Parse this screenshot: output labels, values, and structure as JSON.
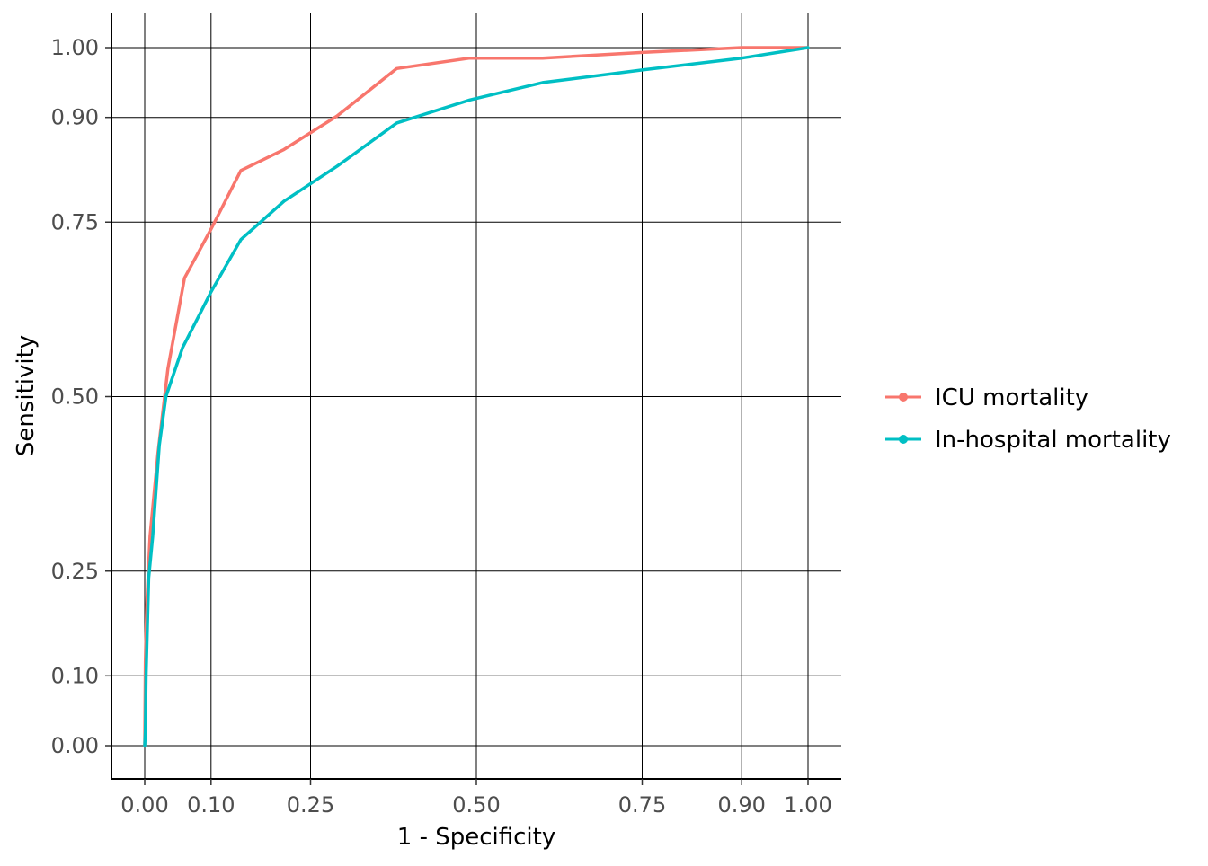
{
  "chart_data": {
    "type": "line",
    "xlabel": "1 - Specificity",
    "ylabel": "Sensitivity",
    "xlim": [
      -0.05,
      1.05
    ],
    "ylim": [
      -0.05,
      1.05
    ],
    "x_ticks": [
      "0.00",
      "0.10",
      "0.25",
      "0.50",
      "0.75",
      "0.90",
      "1.00"
    ],
    "y_ticks": [
      "0.00",
      "0.10",
      "0.25",
      "0.50",
      "0.75",
      "0.90",
      "1.00"
    ],
    "grid": true,
    "legend_position": "right",
    "series": [
      {
        "name": "ICU mortality",
        "color": "#F8766D",
        "x": [
          0.0,
          0.001,
          0.003,
          0.008,
          0.02,
          0.035,
          0.06,
          0.1,
          0.145,
          0.21,
          0.29,
          0.38,
          0.49,
          0.6,
          0.75,
          0.9,
          1.0
        ],
        "y": [
          0.0,
          0.12,
          0.2,
          0.3,
          0.42,
          0.54,
          0.67,
          0.74,
          0.824,
          0.854,
          0.902,
          0.97,
          0.985,
          0.985,
          0.993,
          1.0,
          1.0
        ]
      },
      {
        "name": "In-hospital mortality",
        "color": "#00BFC4",
        "x": [
          0.0,
          0.001,
          0.002,
          0.006,
          0.012,
          0.022,
          0.032,
          0.057,
          0.1,
          0.145,
          0.21,
          0.29,
          0.38,
          0.49,
          0.6,
          0.75,
          0.9,
          1.0
        ],
        "y": [
          0.0,
          0.02,
          0.1,
          0.24,
          0.3,
          0.43,
          0.5,
          0.57,
          0.65,
          0.725,
          0.78,
          0.83,
          0.892,
          0.925,
          0.95,
          0.968,
          0.985,
          1.0
        ]
      }
    ]
  }
}
